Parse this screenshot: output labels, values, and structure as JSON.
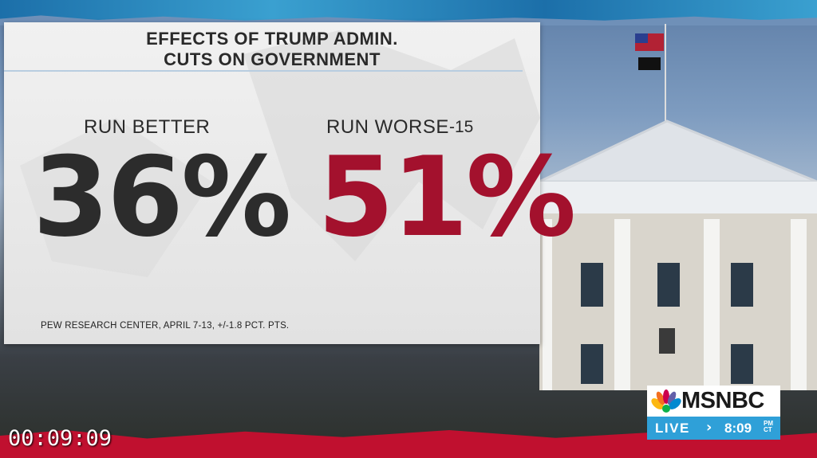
{
  "graphic": {
    "title_line1": "EFFECTS OF TRUMP ADMIN.",
    "title_line2": "CUTS ON GOVERNMENT",
    "run_better": {
      "label": "RUN BETTER",
      "value": "36%"
    },
    "run_worse": {
      "label": "RUN WORSE",
      "value": "51%",
      "difference": "-15"
    },
    "source": "PEW RESEARCH CENTER, APRIL 7-13, +/-1.8 PCT. PTS.",
    "colors": {
      "better": "#2c2c2c",
      "worse": "#a3112d"
    }
  },
  "timer": "00:09:09",
  "network": {
    "logo_text": "MSNBC",
    "logo_icon": "peacock-icon",
    "status": "LIVE",
    "arrow_icon": "chevron-right-icon",
    "time": "8:09",
    "ampm": "PM",
    "timezone": "CT",
    "accent": "#2fa0d8"
  }
}
